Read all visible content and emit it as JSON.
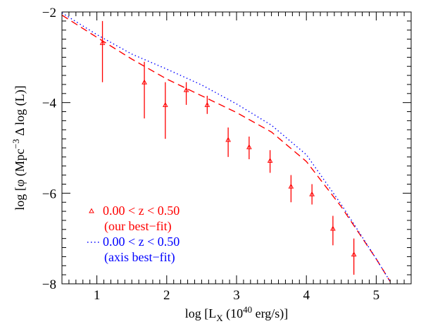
{
  "chart_data": {
    "type": "scatter",
    "title": "",
    "xlabel": {
      "main": "log [L",
      "sub": "X",
      "rest": " (10",
      "sup": "40",
      "end": " erg/s)]"
    },
    "ylabel": {
      "main": "log [φ (Mpc",
      "sup": "−3",
      "rest": " Δ log (L)]"
    },
    "xlim": [
      0.5,
      5.5
    ],
    "ylim": [
      -8,
      -2
    ],
    "xticks": [
      1,
      2,
      3,
      4,
      5
    ],
    "xtick_labels": [
      "1",
      "2",
      "3",
      "4",
      "5"
    ],
    "yticks": [
      -8,
      -6,
      -4,
      -2
    ],
    "ytick_labels": [
      "−8",
      "−6",
      "−4",
      "−2"
    ],
    "grid": false,
    "legend_position": "bottom-left",
    "series": [
      {
        "name": "0.00 < z <  0.50",
        "sublabel": "(our best−fit)",
        "kind": "points",
        "color": "#ff0000",
        "marker": "triangle-open",
        "points": [
          {
            "x": 1.08,
            "y": -2.68,
            "ylo": -3.55,
            "yhi": -2.2
          },
          {
            "x": 1.68,
            "y": -3.55,
            "ylo": -4.35,
            "yhi": -3.1
          },
          {
            "x": 1.98,
            "y": -4.05,
            "ylo": -4.8,
            "yhi": -3.55
          },
          {
            "x": 2.28,
            "y": -3.72,
            "ylo": -4.05,
            "yhi": -3.55
          },
          {
            "x": 2.58,
            "y": -4.05,
            "ylo": -4.25,
            "yhi": -3.85
          },
          {
            "x": 2.88,
            "y": -4.82,
            "ylo": -5.2,
            "yhi": -4.55
          },
          {
            "x": 3.18,
            "y": -4.98,
            "ylo": -5.25,
            "yhi": -4.75
          },
          {
            "x": 3.48,
            "y": -5.28,
            "ylo": -5.55,
            "yhi": -5.05
          },
          {
            "x": 3.78,
            "y": -5.85,
            "ylo": -6.2,
            "yhi": -5.6
          },
          {
            "x": 4.08,
            "y": -6.02,
            "ylo": -6.25,
            "yhi": -5.8
          },
          {
            "x": 4.38,
            "y": -6.78,
            "ylo": -7.15,
            "yhi": -6.5
          },
          {
            "x": 4.68,
            "y": -7.35,
            "ylo": -7.8,
            "yhi": -7.0
          }
        ]
      },
      {
        "name": "",
        "kind": "line",
        "style": "dashed",
        "color": "#ff0000",
        "x": [
          0.5,
          1.0,
          1.5,
          2.0,
          2.5,
          3.0,
          3.5,
          4.0,
          4.5,
          5.0,
          5.2
        ],
        "y": [
          -2.07,
          -2.56,
          -3.04,
          -3.48,
          -3.85,
          -4.22,
          -4.65,
          -5.3,
          -6.3,
          -7.45,
          -7.95
        ]
      },
      {
        "name": "0.00 < z <  0.50",
        "sublabel": "(axis best−fit)",
        "kind": "line",
        "style": "dotted",
        "color": "#0000ff",
        "x": [
          0.5,
          1.0,
          1.5,
          2.0,
          2.5,
          3.0,
          3.5,
          4.0,
          4.5,
          5.0,
          5.2
        ],
        "y": [
          -2.02,
          -2.5,
          -2.93,
          -3.26,
          -3.61,
          -4.03,
          -4.5,
          -5.15,
          -6.25,
          -7.45,
          -7.95
        ]
      }
    ]
  }
}
